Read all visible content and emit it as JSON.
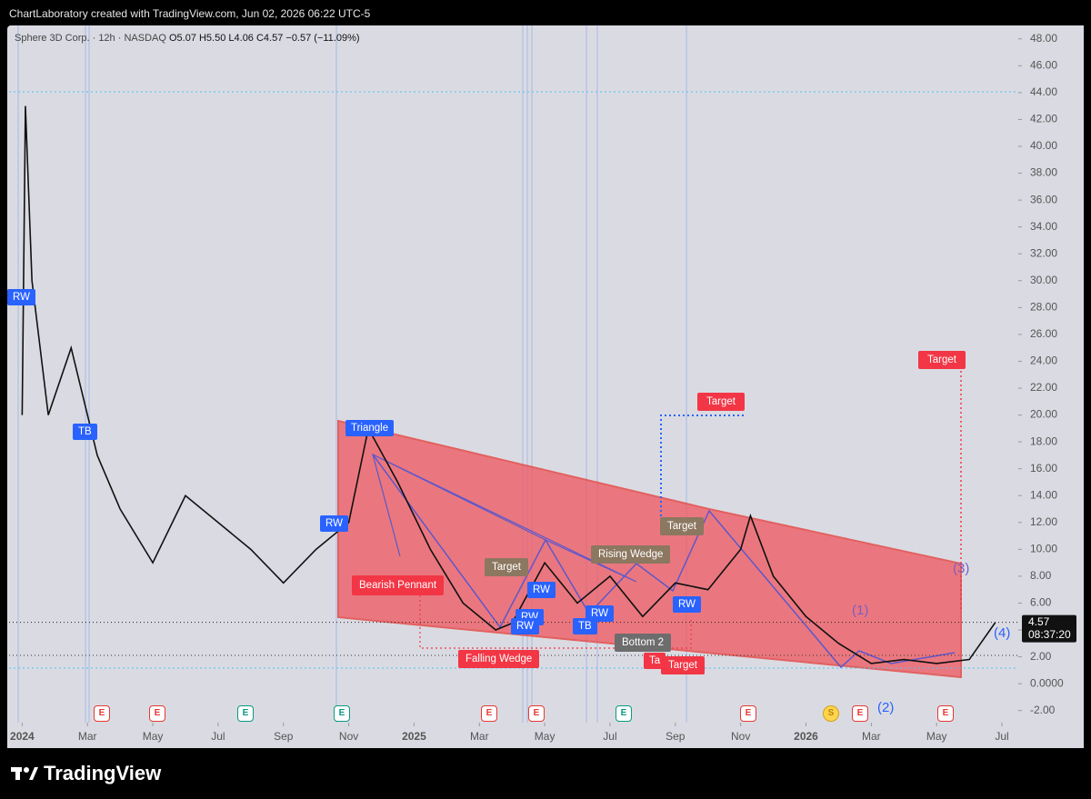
{
  "header": {
    "title": "ChartLaboratory created with TradingView.com, Jun 02, 2026 06:22 UTC-5"
  },
  "chart_data": {
    "type": "line",
    "title": "Sphere 3D Corp. · 12h · NASDAQ",
    "legend_text": "O5.07 H5.50 L4.06 C4.57 −0.57 (−11.09%)",
    "color": "#111111",
    "x": [
      0,
      0.1,
      0.3,
      0.8,
      1.5,
      2.3,
      3,
      4,
      5,
      6,
      7,
      8,
      9,
      10,
      10.6,
      11.5,
      12.5,
      13.5,
      14.5,
      15,
      16,
      17,
      18,
      19,
      20,
      21,
      22,
      22.3,
      23,
      24,
      25,
      26,
      27,
      28,
      29,
      29.8
    ],
    "values": [
      20,
      43,
      30,
      20,
      25,
      17,
      13,
      9,
      14,
      12,
      10,
      7.5,
      10,
      12,
      19,
      15,
      10,
      6,
      4,
      4.5,
      9,
      6,
      8,
      5,
      7.5,
      7,
      10,
      12.5,
      8,
      5,
      3,
      1.5,
      1.8,
      1.5,
      1.8,
      4.57
    ],
    "xlim": [
      -0.4,
      30.5
    ],
    "ylim": [
      -2.9,
      49
    ],
    "xticks": [
      {
        "value": 0,
        "label": "2024"
      },
      {
        "value": 2,
        "label": "Mar"
      },
      {
        "value": 4,
        "label": "May"
      },
      {
        "value": 6,
        "label": "Jul"
      },
      {
        "value": 8,
        "label": "Sep"
      },
      {
        "value": 10,
        "label": "Nov"
      },
      {
        "value": 12,
        "label": "2025"
      },
      {
        "value": 14,
        "label": "Mar"
      },
      {
        "value": 16,
        "label": "May"
      },
      {
        "value": 18,
        "label": "Jul"
      },
      {
        "value": 20,
        "label": "Sep"
      },
      {
        "value": 22,
        "label": "Nov"
      },
      {
        "value": 24,
        "label": "2026"
      },
      {
        "value": 26,
        "label": "Mar"
      },
      {
        "value": 28,
        "label": "May"
      },
      {
        "value": 30,
        "label": "Jul"
      }
    ],
    "yticks": [
      {
        "value": -2,
        "label": "-2.00"
      },
      {
        "value": 0,
        "label": "0.0000"
      },
      {
        "value": 2,
        "label": "2.00"
      },
      {
        "value": 4,
        "label": "4.00"
      },
      {
        "value": 6,
        "label": "6.00"
      },
      {
        "value": 8,
        "label": "8.00"
      },
      {
        "value": 10,
        "label": "10.00"
      },
      {
        "value": 12,
        "label": "12.00"
      },
      {
        "value": 14,
        "label": "14.00"
      },
      {
        "value": 16,
        "label": "16.00"
      },
      {
        "value": 18,
        "label": "18.00"
      },
      {
        "value": 20,
        "label": "20.00"
      },
      {
        "value": 22,
        "label": "22.00"
      },
      {
        "value": 24,
        "label": "24.00"
      },
      {
        "value": 26,
        "label": "26.00"
      },
      {
        "value": 28,
        "label": "28.00"
      },
      {
        "value": 30,
        "label": "30.00"
      },
      {
        "value": 32,
        "label": "32.00"
      },
      {
        "value": 34,
        "label": "34.00"
      },
      {
        "value": 36,
        "label": "36.00"
      },
      {
        "value": 38,
        "label": "38.00"
      },
      {
        "value": 40,
        "label": "40.00"
      },
      {
        "value": 42,
        "label": "42.00"
      },
      {
        "value": 44,
        "label": "44.00"
      },
      {
        "value": 46,
        "label": "46.00"
      },
      {
        "value": 48,
        "label": "48.00"
      }
    ],
    "price_line": {
      "value": 4.57,
      "label": "4.57",
      "countdown": "08:37:20"
    },
    "annotations": [
      "Triangle",
      "RW",
      "TB",
      "RW",
      "Bearish Pennant",
      "Target",
      "RW",
      "RW",
      "RW",
      "RW",
      "TB",
      "Rising Wedge",
      "Target",
      "RW",
      "Target",
      "Target",
      "Bottom 2",
      "Falling Wedge",
      "Target",
      "Ta",
      "(1)",
      "(2)",
      "(3)",
      "(4)"
    ],
    "events": [
      "E",
      "E",
      "E",
      "E",
      "E",
      "E",
      "E",
      "E",
      "S",
      "E",
      "E"
    ]
  },
  "footer": {
    "logo": "TradingView"
  }
}
